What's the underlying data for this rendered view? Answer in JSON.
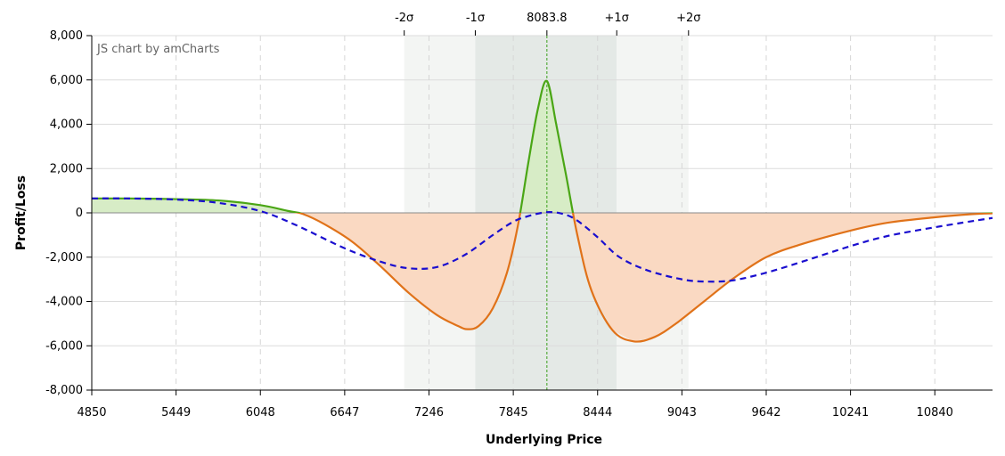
{
  "chart_data": {
    "type": "area",
    "credit": "JS chart by amCharts",
    "xlabel": "Underlying Price",
    "ylabel": "Profit/Loss",
    "xlim": [
      4850,
      11250
    ],
    "ylim": [
      -8000,
      8000
    ],
    "x_ticks": [
      4850,
      5449,
      6048,
      6647,
      7246,
      7845,
      8444,
      9043,
      9642,
      10241,
      10840
    ],
    "x_tick_labels": [
      "4850",
      "5449",
      "6048",
      "6647",
      "7246",
      "7845",
      "8444",
      "9043",
      "9642",
      "10241",
      "10840"
    ],
    "y_ticks": [
      8000,
      6000,
      4000,
      2000,
      0,
      -2000,
      -4000,
      -6000,
      -8000
    ],
    "y_tick_labels": [
      "8,000",
      "6,000",
      "4,000",
      "2,000",
      "0",
      "-2,000",
      "-4,000",
      "-6,000",
      "-8,000"
    ],
    "current_price": 8083.8,
    "sigma_bands": [
      {
        "label": "-2σ",
        "from": 7070,
        "to": 7575,
        "color": "#f3f5f3"
      },
      {
        "label": "-1σ",
        "from": 7575,
        "to": 8083.8,
        "color": "#e4e9e6"
      },
      {
        "label": "8083.8",
        "at": 8083.8
      },
      {
        "label": "+1σ",
        "from": 8083.8,
        "to": 8580,
        "color": "#e4e9e6"
      },
      {
        "label": "+2σ",
        "from": 8580,
        "to": 9090,
        "color": "#f3f5f3"
      }
    ],
    "top_labels": [
      {
        "label": "-2σ",
        "x": 7070
      },
      {
        "label": "-1σ",
        "x": 7575
      },
      {
        "label": "8083.8",
        "x": 8083.8
      },
      {
        "label": "+1σ",
        "x": 8580
      },
      {
        "label": "+2σ",
        "x": 9090
      }
    ],
    "series": [
      {
        "style": "solid",
        "color_profit": "#4aa615",
        "color_loss": "#e07219",
        "fill_profit": "#d7ecc6",
        "fill_loss": "#fad9c2",
        "x": [
          4850,
          5100,
          5449,
          5750,
          6048,
          6250,
          6350,
          6500,
          6700,
          6900,
          7100,
          7300,
          7450,
          7520,
          7600,
          7700,
          7800,
          7880,
          7950,
          8020,
          8083.8,
          8150,
          8220,
          8300,
          8400,
          8550,
          8700,
          8850,
          9000,
          9200,
          9400,
          9642,
          9900,
          10241,
          10500,
          10840,
          11100,
          11250
        ],
        "y": [
          650,
          650,
          620,
          560,
          350,
          80,
          -50,
          -500,
          -1300,
          -2400,
          -3600,
          -4600,
          -5100,
          -5250,
          -5100,
          -4300,
          -2700,
          -500,
          2200,
          4700,
          5950,
          4000,
          1700,
          -1000,
          -3500,
          -5300,
          -5800,
          -5600,
          -5000,
          -4000,
          -3000,
          -2000,
          -1400,
          -800,
          -450,
          -200,
          -60,
          -20
        ]
      },
      {
        "style": "dashed",
        "color": "#1a0ecf",
        "x": [
          4850,
          5100,
          5449,
          5750,
          6048,
          6300,
          6647,
          6900,
          7100,
          7300,
          7500,
          7700,
          7845,
          7950,
          8083.8,
          8200,
          8300,
          8444,
          8600,
          8800,
          9043,
          9200,
          9400,
          9642,
          9900,
          10241,
          10500,
          10840,
          11100,
          11250
        ],
        "y": [
          650,
          650,
          600,
          450,
          80,
          -550,
          -1600,
          -2200,
          -2500,
          -2450,
          -1900,
          -1000,
          -400,
          -150,
          30,
          -50,
          -350,
          -1100,
          -2000,
          -2600,
          -3000,
          -3100,
          -3050,
          -2700,
          -2200,
          -1500,
          -1050,
          -650,
          -380,
          -230
        ]
      }
    ],
    "grid": true,
    "legend": "none"
  }
}
